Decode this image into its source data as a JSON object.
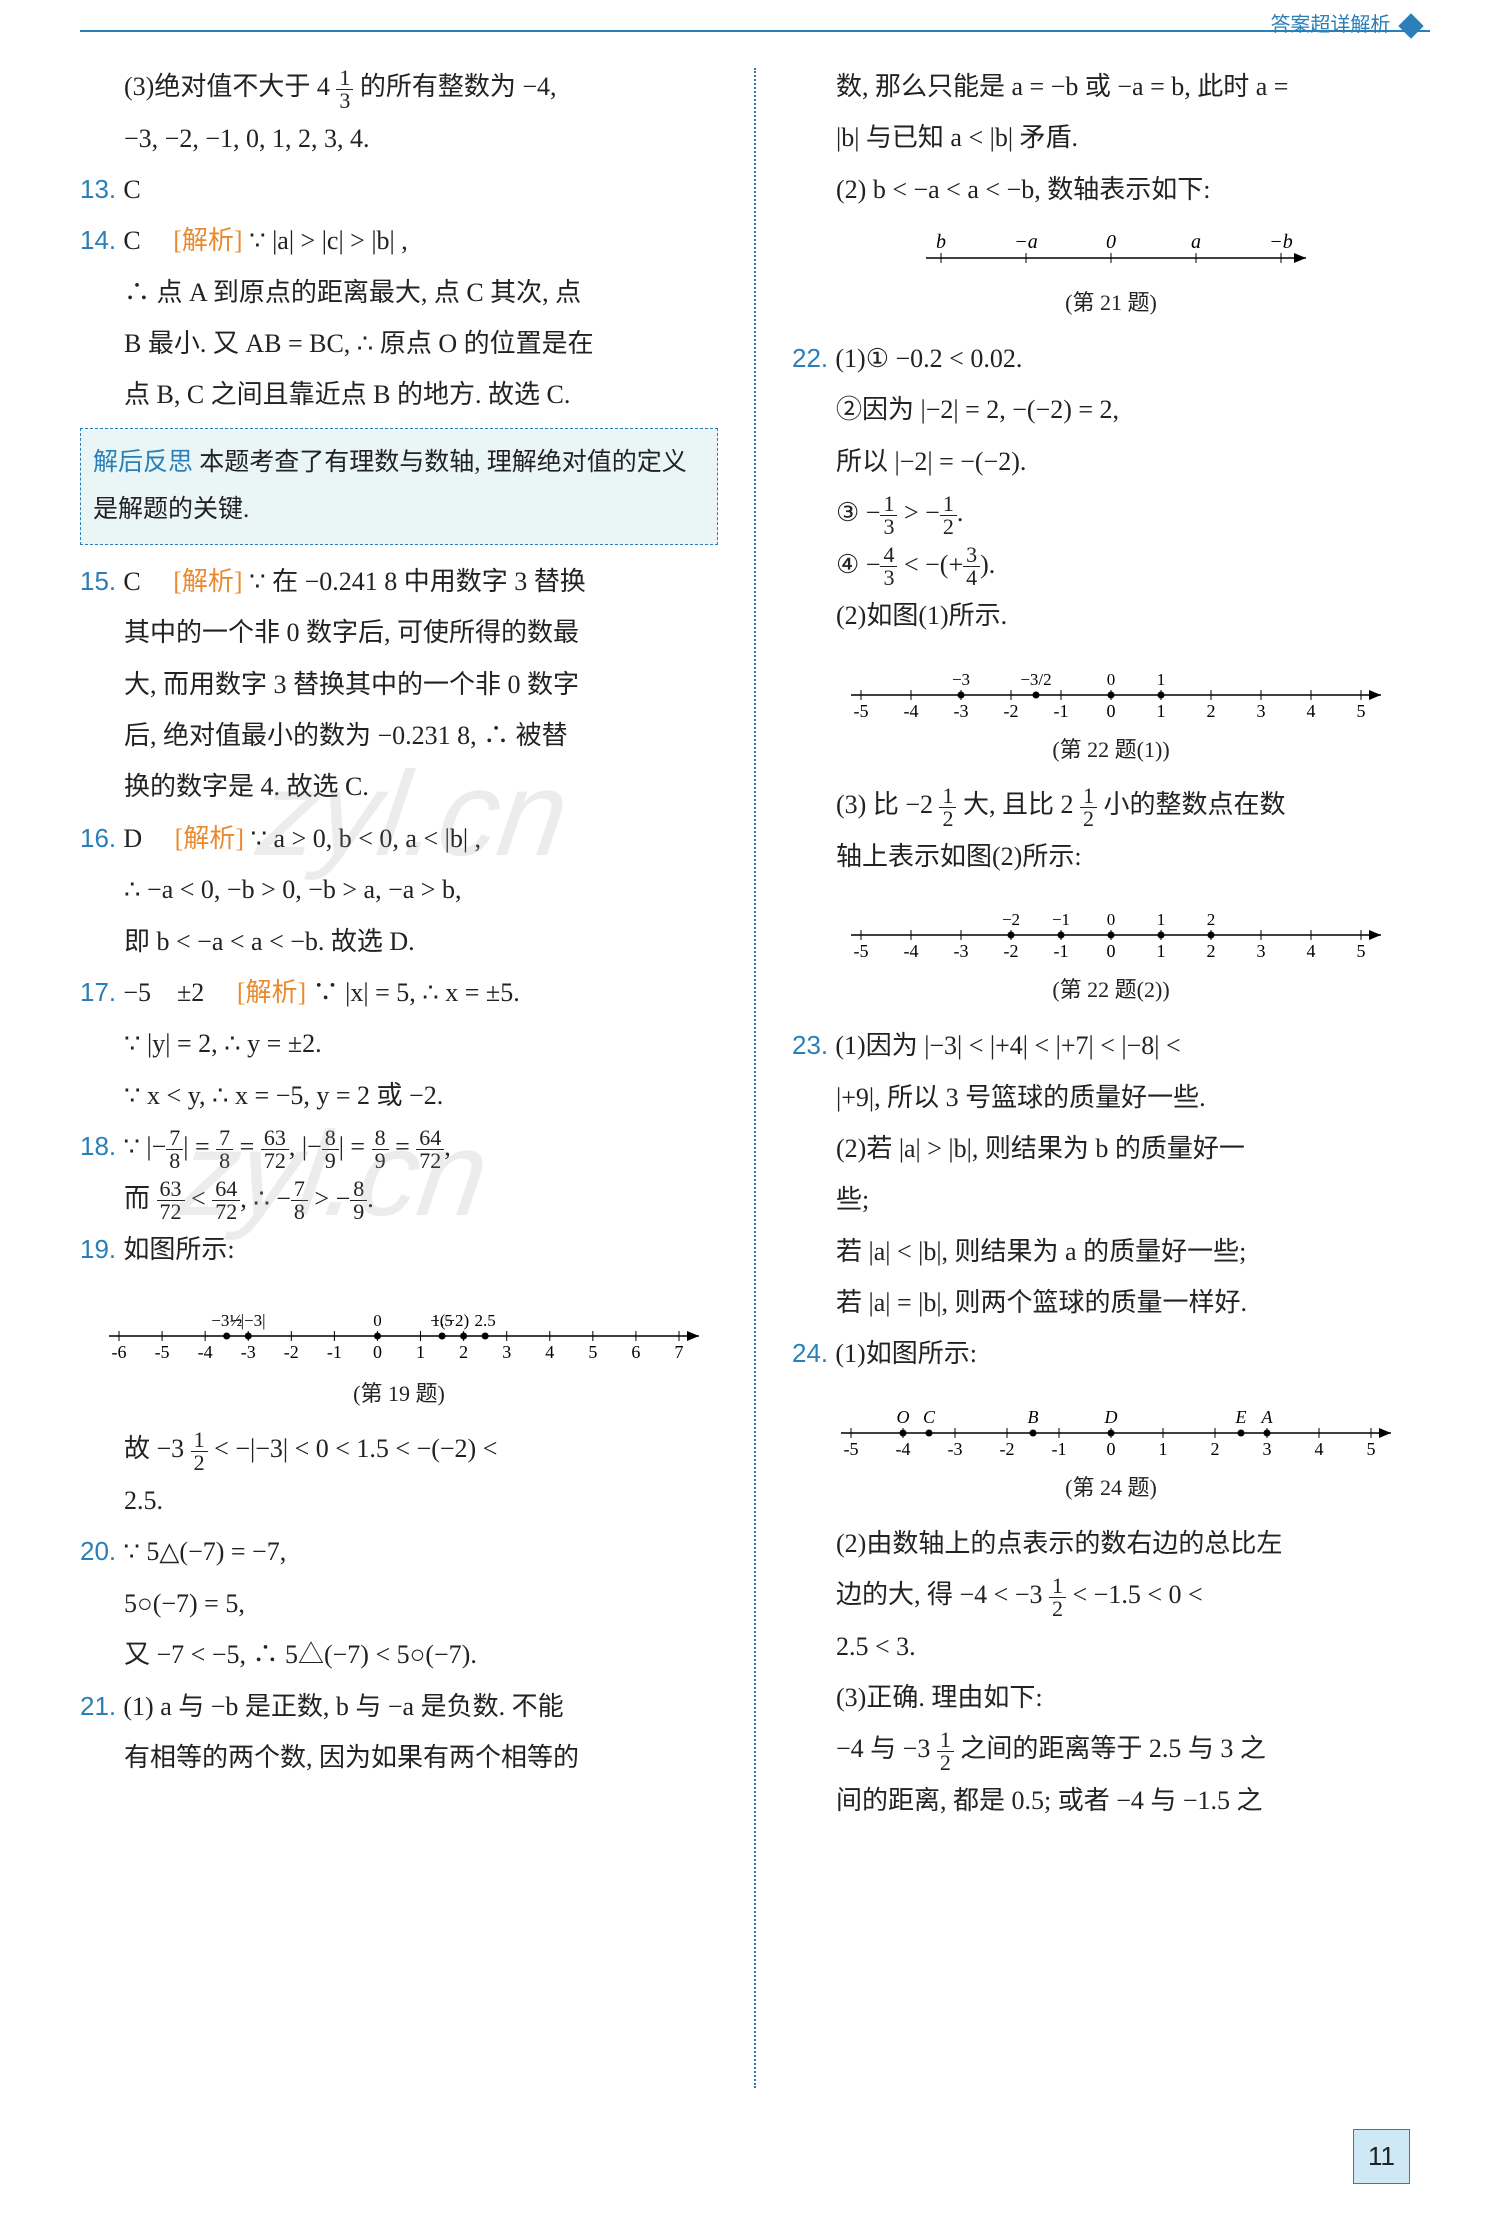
{
  "header": {
    "label": "答案超详解析"
  },
  "pageNumber": "11",
  "watermark": "zyl.cn",
  "left": {
    "q12_3": "(3)绝对值不大于 4 ",
    "q12_3b": "的所有整数为 −4,",
    "q12_3c": "−3, −2, −1, 0, 1, 2, 3, 4.",
    "q13": "C",
    "q14": "C",
    "q14_tag": "[解析]",
    "q14_a": "∵ |a| > |c| > |b| ,",
    "q14_b": "∴ 点 A 到原点的距离最大, 点 C 其次, 点",
    "q14_c": "B 最小. 又 AB = BC, ∴ 原点 O 的位置是在",
    "q14_d": "点 B, C 之间且靠近点 B 的地方. 故选 C.",
    "reflection_label": "解后反思",
    "reflection": "本题考查了有理数与数轴, 理解绝对值的定义是解题的关键.",
    "q15": "C",
    "q15_tag": "[解析]",
    "q15_a": "∵ 在 −0.241 8 中用数字 3 替换",
    "q15_b": "其中的一个非 0 数字后, 可使所得的数最",
    "q15_c": "大, 而用数字 3 替换其中的一个非 0 数字",
    "q15_d": "后, 绝对值最小的数为 −0.231 8, ∴ 被替",
    "q15_e": "换的数字是 4. 故选 C.",
    "q16": "D",
    "q16_tag": "[解析]",
    "q16_a": "∵ a > 0, b < 0, a < |b| ,",
    "q16_b": "∴ −a < 0, −b > 0, −b > a, −a > b,",
    "q16_c": "即 b < −a < a < −b. 故选 D.",
    "q17": "−5　±2",
    "q17_tag": "[解析]",
    "q17_a": "∵ |x| = 5, ∴ x = ±5.",
    "q17_b": "∵ |y| = 2, ∴ y = ±2.",
    "q17_c": "∵ x < y, ∴ x = −5, y = 2 或 −2.",
    "q18_a": "∵ |−7/8| = 7/8 = 63/72, |−8/9| = 8/9 = 64/72,",
    "q18_b": "而 63/72 < 64/72, ∴ −7/8 > −8/9.",
    "q19": "如图所示:",
    "q19_caption": "(第 19 题)",
    "q19_c": "故 −3 1/2 < −|−3| < 0 < 1.5 < −(−2) <",
    "q19_d": "2.5.",
    "q20_a": "∵ 5△(−7) = −7,",
    "q20_b": "5○(−7) = 5,",
    "q20_c": "又 −7 < −5, ∴ 5△(−7) < 5○(−7).",
    "q21_a": "(1) a 与 −b 是正数, b 与 −a 是负数. 不能",
    "q21_b": "有相等的两个数, 因为如果有两个相等的",
    "numline19": {
      "xmin": -6,
      "xmax": 7,
      "ticks": [
        -6,
        -5,
        -4,
        -3,
        -2,
        -1,
        0,
        1,
        2,
        3,
        4,
        5,
        6,
        7
      ],
      "points": [
        {
          "x": -3.5,
          "label": "−3½",
          "above": true
        },
        {
          "x": -3,
          "label": "−|−3|",
          "above": true
        },
        {
          "x": 0,
          "label": "0",
          "above": true
        },
        {
          "x": 1.5,
          "label": "1.5",
          "above": true
        },
        {
          "x": 2,
          "label": "−(−2)",
          "above": true,
          "off": -14
        },
        {
          "x": 2.5,
          "label": "2.5",
          "above": true
        }
      ]
    }
  },
  "right": {
    "q21_c": "数, 那么只能是 a = −b 或 −a = b, 此时 a =",
    "q21_d": "|b| 与已知 a < |b| 矛盾.",
    "q21_e": "(2) b < −a < a < −b, 数轴表示如下:",
    "q21_caption": "(第 21 题)",
    "numline21": {
      "labels": [
        "b",
        "−a",
        "0",
        "a",
        "−b"
      ]
    },
    "q22_1a": "(1)① −0.2 < 0.02.",
    "q22_1b": "②因为 |−2| = 2, −(−2) = 2,",
    "q22_1c": "所以 |−2| = −(−2).",
    "q22_1d": "③ −1/3 > −1/2.",
    "q22_1e": "④ −4/3 < −(+3/4).",
    "q22_2": "(2)如图(1)所示.",
    "q22_caption1": "(第 22 题(1))",
    "numline22a": {
      "xmin": -5,
      "xmax": 5,
      "points": [
        {
          "x": -3,
          "label": "−3"
        },
        {
          "x": -1.5,
          "label": "−3/2"
        },
        {
          "x": 0,
          "label": "0"
        },
        {
          "x": 1,
          "label": "1"
        }
      ]
    },
    "q22_3a": "(3) 比 −2 1/2 大, 且比 2 1/2 小的整数点在数",
    "q22_3b": "轴上表示如图(2)所示:",
    "q22_caption2": "(第 22 题(2))",
    "numline22b": {
      "xmin": -5,
      "xmax": 5,
      "points": [
        {
          "x": -2,
          "label": "−2"
        },
        {
          "x": -1,
          "label": "−1"
        },
        {
          "x": 0,
          "label": "0"
        },
        {
          "x": 1,
          "label": "1"
        },
        {
          "x": 2,
          "label": "2"
        }
      ]
    },
    "q23_a": "(1)因为 |−3| < |+4| < |+7| < |−8| <",
    "q23_b": "|+9|, 所以 3 号篮球的质量好一些.",
    "q23_c": "(2)若 |a| > |b|, 则结果为 b 的质量好一",
    "q23_d": "些;",
    "q23_e": "若 |a| < |b|, 则结果为 a 的质量好一些;",
    "q23_f": "若 |a| = |b|, 则两个篮球的质量一样好.",
    "q24_a": "(1)如图所示:",
    "q24_caption": "(第 24 题)",
    "numline24": {
      "xmin": -5,
      "xmax": 5,
      "letterPoints": [
        {
          "x": -4,
          "label": "O"
        },
        {
          "x": -3.5,
          "label": "C"
        },
        {
          "x": -1.5,
          "label": "B"
        },
        {
          "x": 0,
          "label": "D"
        },
        {
          "x": 2.5,
          "label": "E"
        },
        {
          "x": 3,
          "label": "A"
        }
      ]
    },
    "q24_b": "(2)由数轴上的点表示的数右边的总比左",
    "q24_c": "边的大, 得 −4 < −3 1/2 < −1.5 < 0 <",
    "q24_d": "2.5 < 3.",
    "q24_e": "(3)正确. 理由如下:",
    "q24_f": "−4 与 −3 1/2 之间的距离等于 2.5 与 3 之",
    "q24_g": "间的距离, 都是 0.5; 或者 −4 与 −1.5 之"
  }
}
